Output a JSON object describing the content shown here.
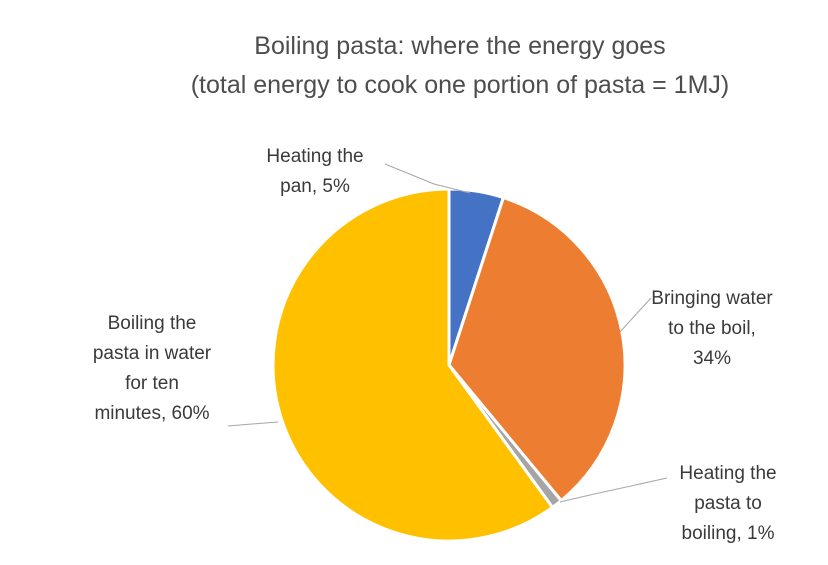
{
  "chart_data": {
    "type": "pie",
    "title": "Boiling pasta: where the energy goes",
    "subtitle": "(total energy to cook one portion of pasta = 1MJ)",
    "start_angle_deg": 0,
    "direction": "clockwise",
    "slices": [
      {
        "label": "Heating the pan, 5%",
        "label_lines": [
          "Heating the",
          "pan, 5%"
        ],
        "value": 5,
        "color": "#4472c4"
      },
      {
        "label": "Bringing water to the boil, 34%",
        "label_lines": [
          "Bringing water",
          "to the boil,",
          "34%"
        ],
        "value": 34,
        "color": "#ed7d31"
      },
      {
        "label": "Heating the pasta to boiling, 1%",
        "label_lines": [
          "Heating the",
          "pasta to",
          "boiling, 1%"
        ],
        "value": 1,
        "color": "#a5a5a5"
      },
      {
        "label": "Boiling the pasta in water for ten minutes, 60%",
        "label_lines": [
          "Boiling the",
          "pasta in water",
          "for ten",
          "minutes, 60%"
        ],
        "value": 60,
        "color": "#ffc000"
      }
    ]
  }
}
